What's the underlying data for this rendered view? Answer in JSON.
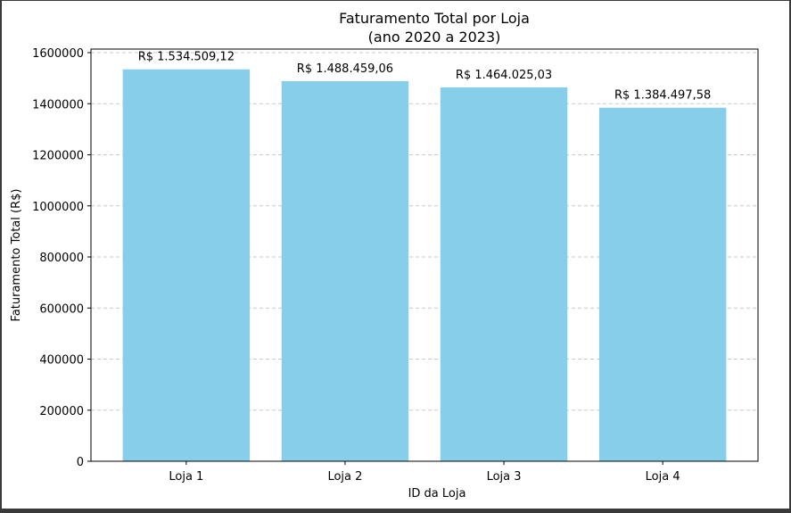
{
  "chart_data": {
    "type": "bar",
    "title": "Faturamento Total por Loja",
    "subtitle": "(ano 2020 a 2023)",
    "xlabel": "ID da Loja",
    "ylabel": "Faturamento Total (R$)",
    "categories": [
      "Loja 1",
      "Loja 2",
      "Loja 3",
      "Loja 4"
    ],
    "values": [
      1534509.12,
      1488459.06,
      1464025.03,
      1384497.58
    ],
    "data_labels": [
      "R$ 1.534.509,12",
      "R$ 1.488.459,06",
      "R$ 1.464.025,03",
      "R$ 1.384.497,58"
    ],
    "ylim": [
      0,
      1600000
    ],
    "yticks": [
      0,
      200000,
      400000,
      600000,
      800000,
      1000000,
      1200000,
      1400000,
      1600000
    ],
    "ytick_labels": [
      "0",
      "200000",
      "400000",
      "600000",
      "800000",
      "1000000",
      "1200000",
      "1400000",
      "1600000"
    ],
    "grid": "y-dashed",
    "bar_color": "#87CEEB",
    "grid_color": "#c8c8c8"
  }
}
